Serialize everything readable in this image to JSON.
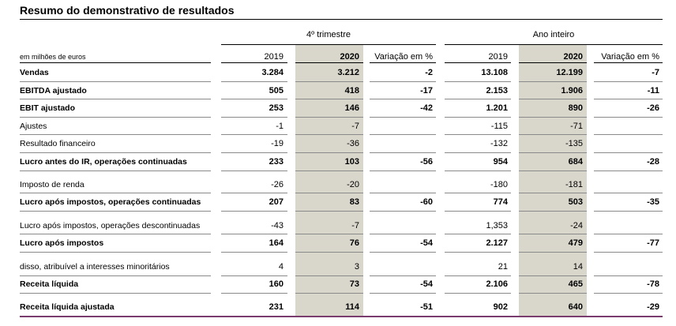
{
  "title": "Resumo do demonstrativo de resultados",
  "groups": {
    "quarter": "4º trimestre",
    "full_year": "Ano inteiro"
  },
  "header": {
    "unit": "em milhões de euros",
    "q_2019": "2019",
    "q_2020": "2020",
    "q_var": "Variação em %",
    "y_2019": "2019",
    "y_2020": "2020",
    "y_var": "Variação em %"
  },
  "rows": [
    {
      "label": "Vendas",
      "bold": true,
      "q2019": "3.284",
      "q2020": "3.212",
      "qvar": "-2",
      "y2019": "13.108",
      "y2020": "12.199",
      "yvar": "-7"
    },
    {
      "label": "EBITDA ajustado",
      "bold": true,
      "q2019": "505",
      "q2020": "418",
      "qvar": "-17",
      "y2019": "2.153",
      "y2020": "1.906",
      "yvar": "-11"
    },
    {
      "label": "EBIT ajustado",
      "bold": true,
      "q2019": "253",
      "q2020": "146",
      "qvar": "-42",
      "y2019": "1.201",
      "y2020": "890",
      "yvar": "-26"
    },
    {
      "label": "Ajustes",
      "bold": false,
      "q2019": "-1",
      "q2020": "-7",
      "qvar": "",
      "y2019": "-115",
      "y2020": "-71",
      "yvar": ""
    },
    {
      "label": "Resultado financeiro",
      "bold": false,
      "q2019": "-19",
      "q2020": "-36",
      "qvar": "",
      "y2019": "-132",
      "y2020": "-135",
      "yvar": ""
    },
    {
      "label": "Lucro antes do IR, operações continuadas",
      "bold": true,
      "q2019": "233",
      "q2020": "103",
      "qvar": "-56",
      "y2019": "954",
      "y2020": "684",
      "yvar": "-28"
    },
    {
      "label": "Imposto de renda",
      "bold": false,
      "q2019": "-26",
      "q2020": "-20",
      "qvar": "",
      "y2019": "-180",
      "y2020": "-181",
      "yvar": ""
    },
    {
      "label": "Lucro após impostos, operações continuadas",
      "bold": true,
      "q2019": "207",
      "q2020": "83",
      "qvar": "-60",
      "y2019": "774",
      "y2020": "503",
      "yvar": "-35"
    },
    {
      "label": "Lucro após impostos, operações descontinuadas",
      "bold": false,
      "q2019": "-43",
      "q2020": "-7",
      "qvar": "",
      "y2019": "1,353",
      "y2020": "-24",
      "yvar": ""
    },
    {
      "label": "Lucro após impostos",
      "bold": true,
      "q2019": "164",
      "q2020": "76",
      "qvar": "-54",
      "y2019": "2.127",
      "y2020": "479",
      "yvar": "-77"
    },
    {
      "label": "disso, atribuível a interesses minoritários",
      "bold": false,
      "q2019": "4",
      "q2020": "3",
      "qvar": "",
      "y2019": "21",
      "y2020": "14",
      "yvar": ""
    },
    {
      "label": "Receita líquida",
      "bold": true,
      "q2019": "160",
      "q2020": "73",
      "qvar": "-54",
      "y2019": "2.106",
      "y2020": "465",
      "yvar": "-78"
    },
    {
      "label": "Receita líquida ajustada",
      "bold": true,
      "q2019": "231",
      "q2020": "114",
      "qvar": "-51",
      "y2019": "902",
      "y2020": "640",
      "yvar": "-29"
    }
  ],
  "colors": {
    "shade": "#d9d6cc",
    "bottom_rule": "#7a3b6e"
  }
}
